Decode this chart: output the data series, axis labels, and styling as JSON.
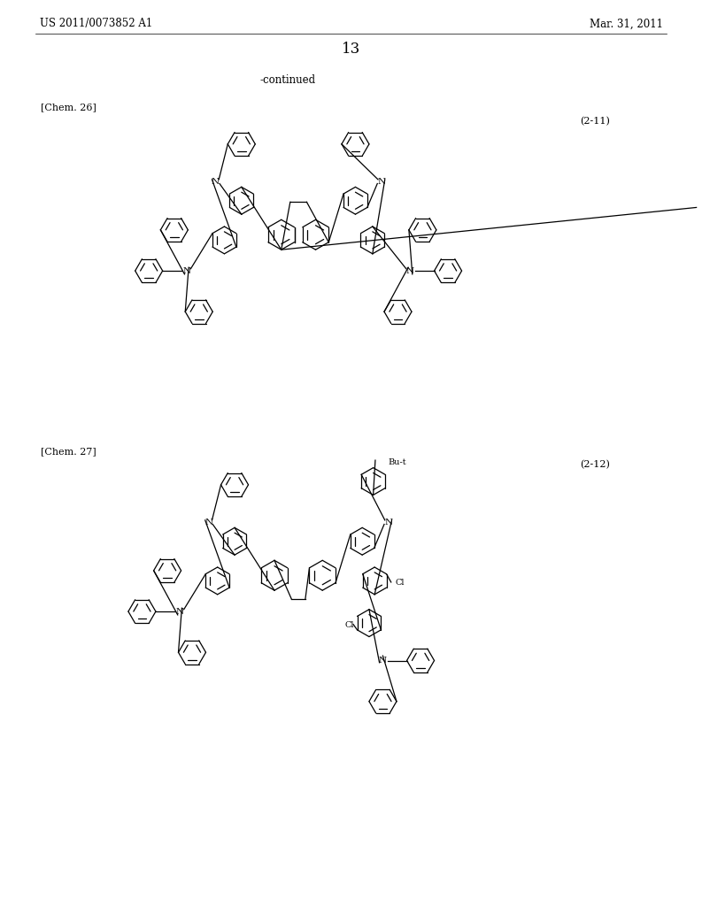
{
  "page_header_left": "US 2011/0073852 A1",
  "page_header_right": "Mar. 31, 2011",
  "page_number": "13",
  "continued_text": "-continued",
  "chem26_label": "[Chem. 26]",
  "chem27_label": "[Chem. 27]",
  "compound211_label": "(2-11)",
  "compound212_label": "(2-12)",
  "but_t_label": "Bu-t",
  "cl_label": "Cl",
  "bg_color": "#ffffff",
  "line_color": "#000000"
}
